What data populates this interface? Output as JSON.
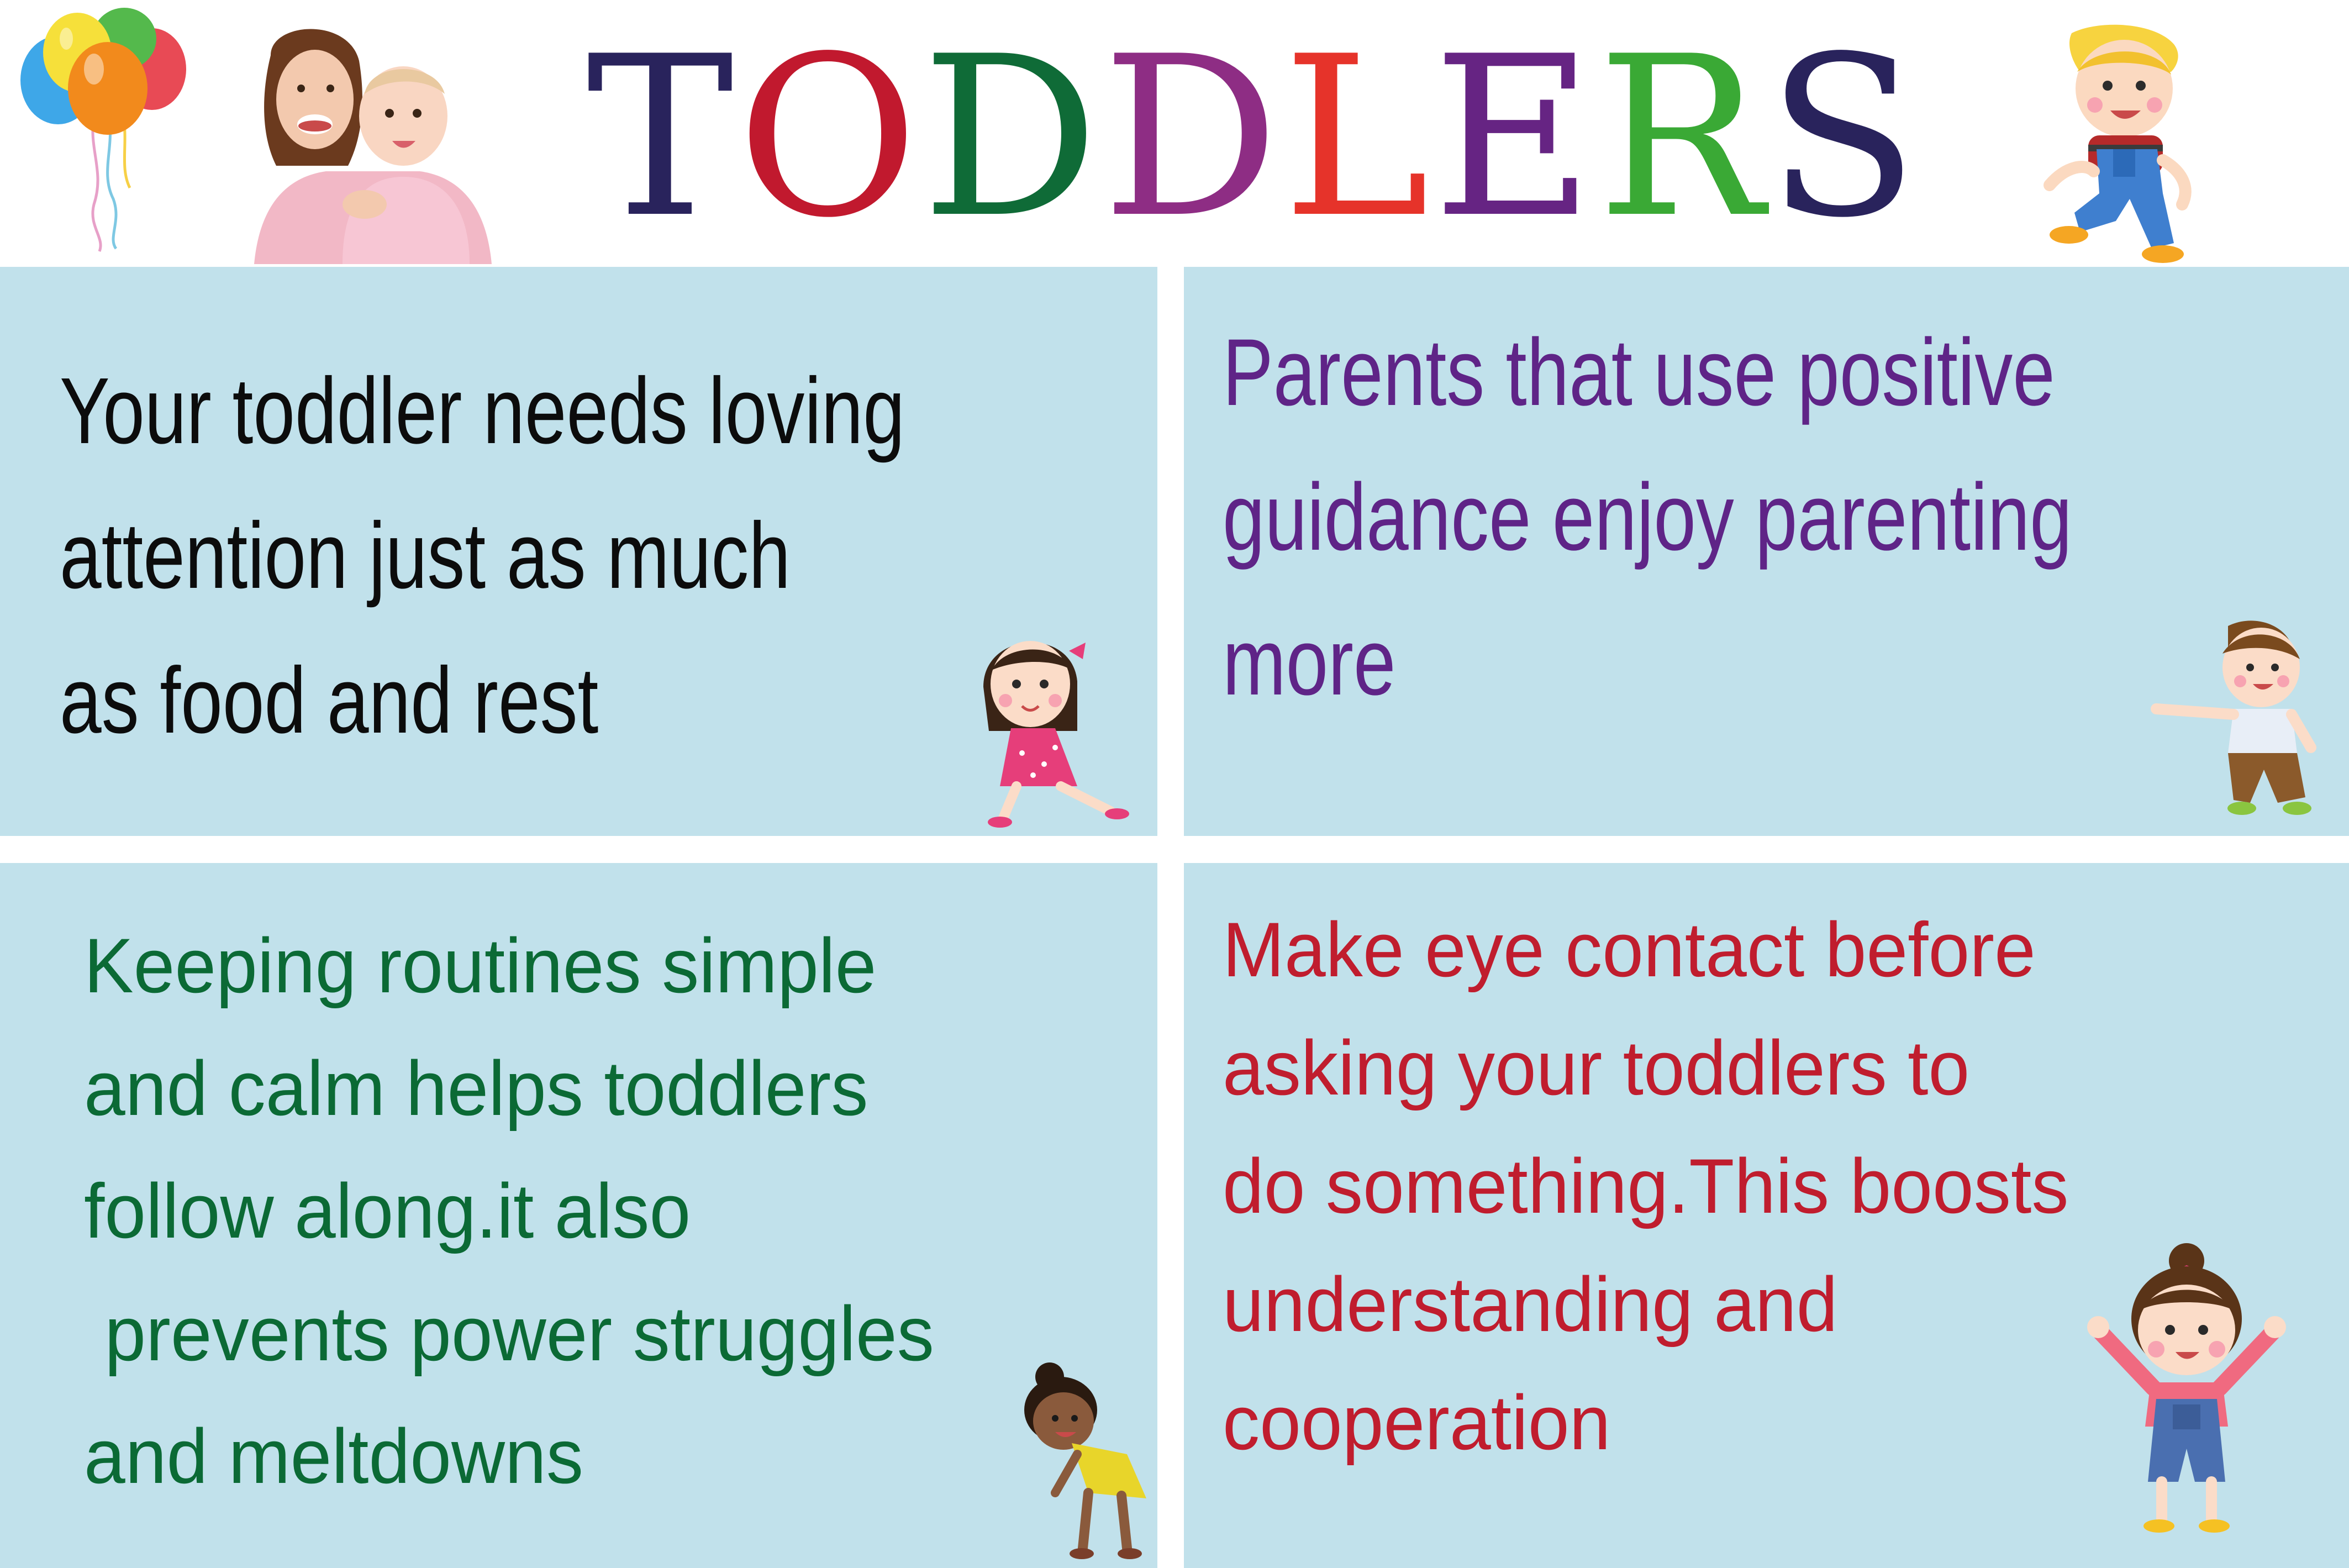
{
  "header": {
    "title_letters": [
      {
        "char": "T",
        "color": "#29235c"
      },
      {
        "char": "O",
        "color": "#c1192e"
      },
      {
        "char": "D",
        "color": "#0f6b37"
      },
      {
        "char": "D",
        "color": "#8e2d84"
      },
      {
        "char": "L",
        "color": "#e6332a"
      },
      {
        "char": "E",
        "color": "#662483"
      },
      {
        "char": "R",
        "color": "#3aa935"
      },
      {
        "char": "S",
        "color": "#29235c"
      }
    ]
  },
  "panels": [
    {
      "color": "#0c0c0c",
      "lines": [
        "Your toddler needs loving",
        "attention just as much",
        "as food and rest"
      ]
    },
    {
      "color": "#5f2487",
      "lines": [
        "Parents that use positive",
        "guidance enjoy parenting",
        "more"
      ]
    },
    {
      "color": "#0b6a35",
      "lines": [
        "Keeping routines simple",
        "and calm helps toddlers",
        "follow along.it also",
        " prevents power struggles",
        "and meltdowns"
      ]
    },
    {
      "color": "#c01d2e",
      "lines": [
        "Make eye contact before",
        "asking your toddlers to",
        "do something.This boosts",
        "understanding and",
        "cooperation"
      ]
    }
  ],
  "illustrations": {
    "balloons": "balloons-icon",
    "mother_and_baby": "mother-baby-photo",
    "header_boy": "boy-overalls-illustration",
    "girl_pink_dress": "girl-pink-dress-illustration",
    "boy_waving": "boy-waving-illustration",
    "girl_bending": "girl-bending-illustration",
    "girl_overalls": "girl-overalls-illustration"
  },
  "colors": {
    "panel_background": "#c1e1eb",
    "page_background": "#ffffff"
  }
}
